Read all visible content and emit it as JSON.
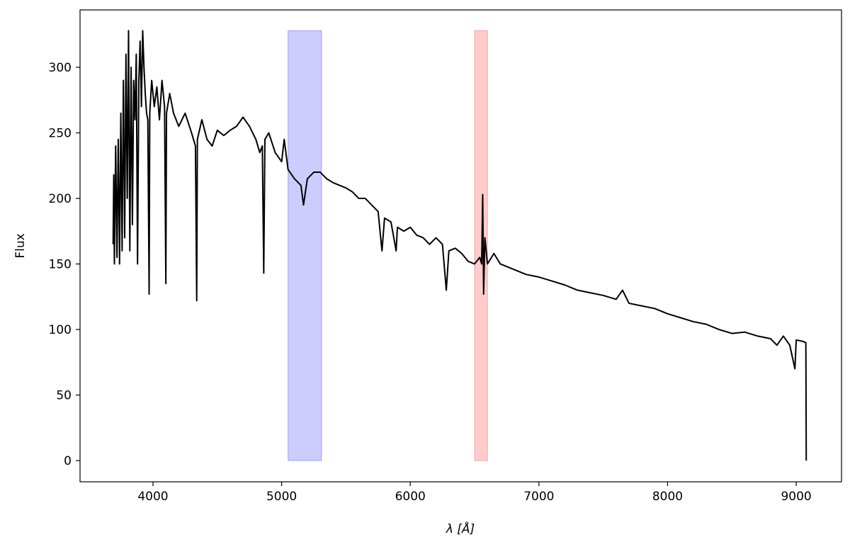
{
  "chart_data": {
    "type": "line",
    "xlabel": "λ [Å]",
    "ylabel": "Flux",
    "xlim": [
      3433,
      9352
    ],
    "ylim": [
      -16.2,
      343.8
    ],
    "xticks": [
      4000,
      5000,
      6000,
      7000,
      8000,
      9000
    ],
    "yticks": [
      0,
      50,
      100,
      150,
      200,
      250,
      300
    ],
    "grid": false,
    "spans": [
      {
        "xmin": 5050,
        "xmax": 5310,
        "ymin": 0,
        "ymax": 328,
        "color": "#0000ff",
        "alpha": 0.2
      },
      {
        "xmin": 6500,
        "xmax": 6600,
        "ymin": 0,
        "ymax": 328,
        "color": "#ff0000",
        "alpha": 0.2
      }
    ],
    "series": [
      {
        "color": "#000000",
        "x": [
          3690,
          3695,
          3700,
          3710,
          3720,
          3730,
          3740,
          3750,
          3760,
          3770,
          3780,
          3790,
          3800,
          3810,
          3820,
          3830,
          3840,
          3850,
          3860,
          3870,
          3880,
          3890,
          3900,
          3910,
          3920,
          3930,
          3940,
          3950,
          3960,
          3970,
          3975,
          3990,
          4010,
          4030,
          4050,
          4070,
          4090,
          4100,
          4105,
          4130,
          4160,
          4200,
          4250,
          4300,
          4330,
          4340,
          4345,
          4380,
          4420,
          4460,
          4500,
          4550,
          4600,
          4650,
          4700,
          4750,
          4800,
          4830,
          4850,
          4861,
          4870,
          4900,
          4950,
          5000,
          5020,
          5050,
          5100,
          5150,
          5170,
          5200,
          5250,
          5300,
          5350,
          5400,
          5450,
          5500,
          5550,
          5600,
          5650,
          5700,
          5750,
          5780,
          5800,
          5850,
          5890,
          5900,
          5950,
          6000,
          6050,
          6100,
          6150,
          6200,
          6250,
          6280,
          6300,
          6350,
          6400,
          6450,
          6500,
          6540,
          6555,
          6563,
          6570,
          6580,
          6600,
          6650,
          6700,
          6750,
          6800,
          6900,
          7000,
          7100,
          7200,
          7300,
          7400,
          7500,
          7600,
          7650,
          7700,
          7800,
          7900,
          8000,
          8100,
          8200,
          8300,
          8400,
          8500,
          8600,
          8700,
          8800,
          8850,
          8900,
          8950,
          8990,
          9000,
          9050,
          9075,
          9078
        ],
        "values": [
          165,
          218,
          150,
          240,
          155,
          245,
          150,
          265,
          160,
          290,
          170,
          310,
          200,
          328,
          160,
          300,
          180,
          290,
          260,
          310,
          150,
          290,
          320,
          270,
          328,
          300,
          280,
          265,
          260,
          127,
          265,
          290,
          270,
          285,
          260,
          290,
          270,
          135,
          265,
          280,
          265,
          255,
          265,
          250,
          240,
          122,
          245,
          260,
          245,
          240,
          252,
          248,
          252,
          255,
          262,
          255,
          245,
          235,
          240,
          143,
          245,
          250,
          235,
          228,
          245,
          222,
          215,
          210,
          195,
          215,
          220,
          220,
          215,
          212,
          210,
          208,
          205,
          200,
          200,
          195,
          190,
          160,
          185,
          182,
          160,
          178,
          175,
          178,
          172,
          170,
          165,
          170,
          165,
          130,
          160,
          162,
          158,
          152,
          150,
          155,
          150,
          203,
          127,
          170,
          150,
          158,
          150,
          148,
          146,
          142,
          140,
          137,
          134,
          130,
          128,
          126,
          123,
          130,
          120,
          118,
          116,
          112,
          109,
          106,
          104,
          100,
          97,
          98,
          95,
          93,
          88,
          95,
          88,
          70,
          92,
          91,
          90,
          0
        ]
      }
    ]
  }
}
